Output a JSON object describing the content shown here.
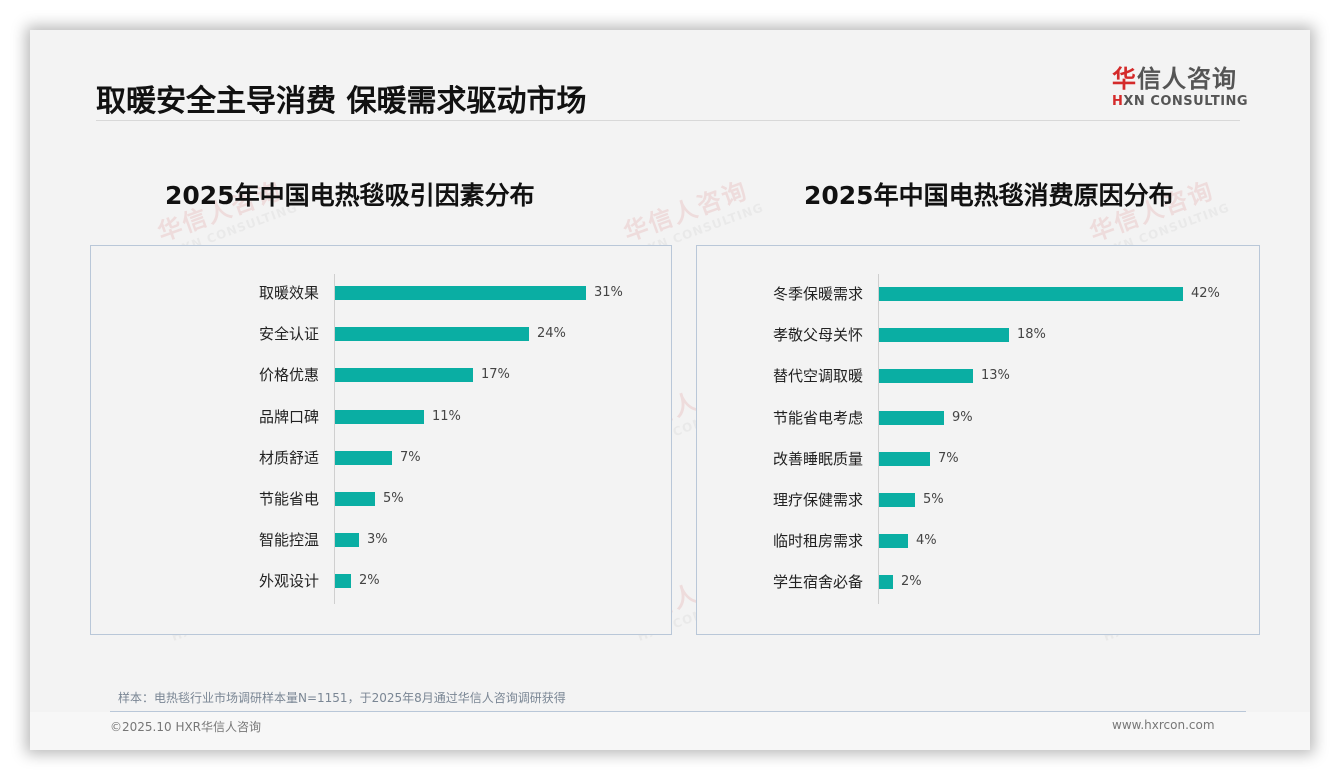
{
  "header": {
    "title": "取暖安全主导消费 保暖需求驱动市场",
    "logo_cn_first": "华",
    "logo_cn_rest": "信人咨询",
    "logo_en_first": "H",
    "logo_en_rest": "XN CONSULTING"
  },
  "watermark": {
    "cn": "华信人咨询",
    "en": "HXN CONSULTING"
  },
  "colors": {
    "bar": "#0aaea3",
    "panel_border": "#b9c7d8",
    "brand_red": "#d42a2a"
  },
  "chart_data": [
    {
      "type": "bar",
      "orientation": "horizontal",
      "title": "2025年中国电热毯吸引因素分布",
      "categories": [
        "取暖效果",
        "安全认证",
        "价格优惠",
        "品牌口碑",
        "材质舒适",
        "节能省电",
        "智能控温",
        "外观设计"
      ],
      "values": [
        31,
        24,
        17,
        11,
        7,
        5,
        3,
        2
      ],
      "labels": [
        "31%",
        "24%",
        "17%",
        "11%",
        "7%",
        "5%",
        "3%",
        "2%"
      ],
      "unit": "%",
      "xlabel": "",
      "ylabel": "",
      "grid": false,
      "legend": null
    },
    {
      "type": "bar",
      "orientation": "horizontal",
      "title": "2025年中国电热毯消费原因分布",
      "categories": [
        "冬季保暖需求",
        "孝敬父母关怀",
        "替代空调取暖",
        "节能省电考虑",
        "改善睡眠质量",
        "理疗保健需求",
        "临时租房需求",
        "学生宿舍必备"
      ],
      "values": [
        42,
        18,
        13,
        9,
        7,
        5,
        4,
        2
      ],
      "labels": [
        "42%",
        "18%",
        "13%",
        "9%",
        "7%",
        "5%",
        "4%",
        "2%"
      ],
      "unit": "%",
      "xlabel": "",
      "ylabel": "",
      "grid": false,
      "legend": null
    }
  ],
  "footer": {
    "note": "样本：电热毯行业市场调研样本量N=1151，于2025年8月通过华信人咨询调研获得",
    "copyright": "©2025.10 HXR华信人咨询",
    "website": "www.hxrcon.com"
  }
}
